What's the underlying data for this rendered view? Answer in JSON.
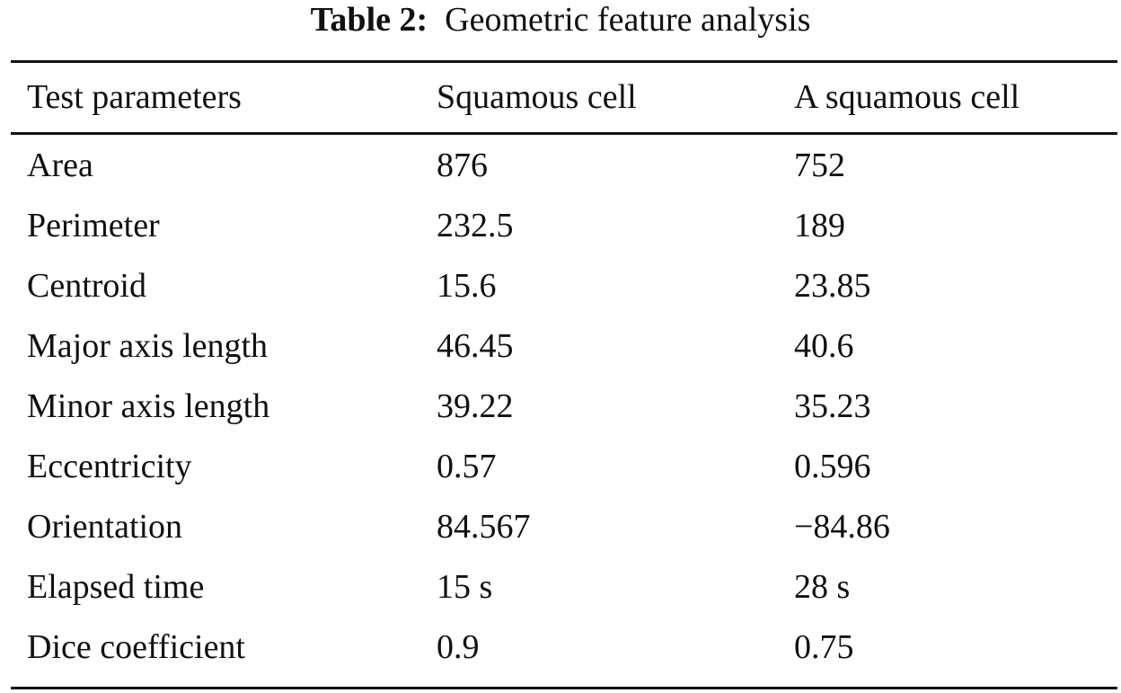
{
  "caption": {
    "label": "Table 2:",
    "title": "Geometric feature analysis"
  },
  "table": {
    "headers": [
      "Test parameters",
      "Squamous cell",
      "A squamous cell"
    ],
    "rows": [
      [
        "Area",
        "876",
        "752"
      ],
      [
        "Perimeter",
        "232.5",
        "189"
      ],
      [
        "Centroid",
        "15.6",
        "23.85"
      ],
      [
        "Major axis length",
        "46.45",
        "40.6"
      ],
      [
        "Minor axis length",
        "39.22",
        "35.23"
      ],
      [
        "Eccentricity",
        "0.57",
        "0.596"
      ],
      [
        "Orientation",
        "84.567",
        "−84.86"
      ],
      [
        "Elapsed time",
        "15 s",
        "28 s"
      ],
      [
        "Dice coefficient",
        "0.9",
        "0.75"
      ]
    ]
  }
}
